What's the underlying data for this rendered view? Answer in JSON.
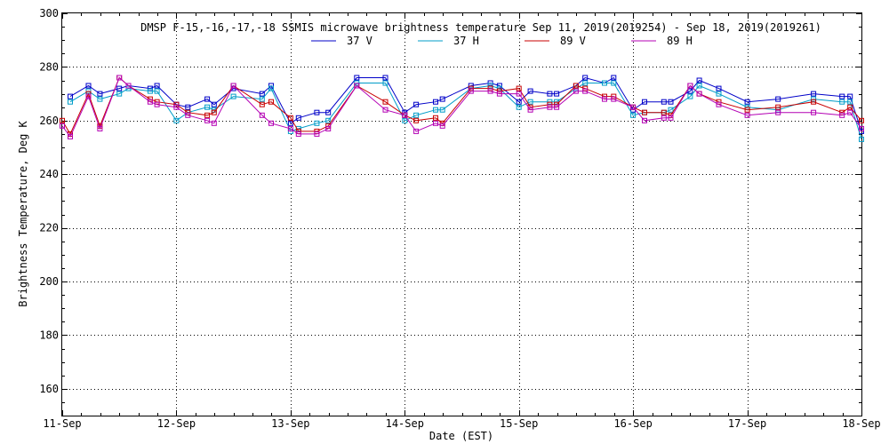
{
  "chart_data": {
    "type": "line",
    "title": "DMSP F-15,-16,-17,-18 SSMIS microwave brightness temperature Sep 11, 2019(2019254) - Sep 18, 2019(2019261)",
    "xlabel": "Date (EST)",
    "ylabel": "Brightness Temperature, Deg K",
    "xlim": [
      0,
      7
    ],
    "ylim": [
      150,
      300
    ],
    "x_tick_values": [
      0,
      1,
      2,
      3,
      4,
      5,
      6,
      7
    ],
    "x_tick_labels": [
      "11-Sep",
      "12-Sep",
      "13-Sep",
      "14-Sep",
      "15-Sep",
      "16-Sep",
      "17-Sep",
      "18-Sep"
    ],
    "y_tick_labels": [
      "160",
      "180",
      "200",
      "220",
      "240",
      "260",
      "280",
      "300"
    ],
    "y_tick_values": [
      160,
      180,
      200,
      220,
      240,
      260,
      280,
      300
    ],
    "grid": true,
    "legend_position": "top-center",
    "series": [
      {
        "name": "37 V",
        "color": "#0000c8",
        "points": [
          [
            0.07,
            269
          ],
          [
            0.23,
            273
          ],
          [
            0.33,
            270
          ],
          [
            0.5,
            272
          ],
          [
            0.58,
            273
          ],
          [
            0.77,
            272
          ],
          [
            0.83,
            273
          ],
          [
            1.0,
            266
          ],
          [
            1.1,
            265
          ],
          [
            1.27,
            268
          ],
          [
            1.33,
            266
          ],
          [
            1.5,
            272
          ],
          [
            1.75,
            270
          ],
          [
            1.83,
            273
          ],
          [
            2.0,
            259
          ],
          [
            2.07,
            261
          ],
          [
            2.23,
            263
          ],
          [
            2.33,
            263
          ],
          [
            2.58,
            276
          ],
          [
            2.83,
            276
          ],
          [
            3.0,
            263
          ],
          [
            3.1,
            266
          ],
          [
            3.27,
            267
          ],
          [
            3.33,
            268
          ],
          [
            3.58,
            273
          ],
          [
            3.75,
            274
          ],
          [
            3.83,
            273
          ],
          [
            4.0,
            267
          ],
          [
            4.1,
            271
          ],
          [
            4.27,
            270
          ],
          [
            4.33,
            270
          ],
          [
            4.5,
            273
          ],
          [
            4.58,
            276
          ],
          [
            4.75,
            274
          ],
          [
            4.83,
            276
          ],
          [
            5.0,
            264
          ],
          [
            5.1,
            267
          ],
          [
            5.27,
            267
          ],
          [
            5.33,
            267
          ],
          [
            5.5,
            271
          ],
          [
            5.58,
            275
          ],
          [
            5.75,
            272
          ],
          [
            6.0,
            267
          ],
          [
            6.27,
            268
          ],
          [
            6.58,
            270
          ],
          [
            6.83,
            269
          ],
          [
            6.9,
            269
          ],
          [
            7.0,
            256
          ]
        ]
      },
      {
        "name": "37 H",
        "color": "#009cc8",
        "points": [
          [
            0.07,
            267
          ],
          [
            0.23,
            271
          ],
          [
            0.33,
            268
          ],
          [
            0.5,
            270
          ],
          [
            0.58,
            272
          ],
          [
            0.77,
            271
          ],
          [
            0.83,
            271
          ],
          [
            1.0,
            260
          ],
          [
            1.1,
            263
          ],
          [
            1.27,
            265
          ],
          [
            1.33,
            264
          ],
          [
            1.5,
            269
          ],
          [
            1.75,
            268
          ],
          [
            1.83,
            272
          ],
          [
            2.0,
            256
          ],
          [
            2.07,
            257
          ],
          [
            2.23,
            259
          ],
          [
            2.33,
            260
          ],
          [
            2.58,
            274
          ],
          [
            2.83,
            274
          ],
          [
            3.0,
            260
          ],
          [
            3.1,
            262
          ],
          [
            3.27,
            264
          ],
          [
            3.33,
            264
          ],
          [
            3.58,
            272
          ],
          [
            3.75,
            273
          ],
          [
            3.83,
            272
          ],
          [
            4.0,
            265
          ],
          [
            4.1,
            267
          ],
          [
            4.27,
            267
          ],
          [
            4.33,
            267
          ],
          [
            4.5,
            272
          ],
          [
            4.58,
            274
          ],
          [
            4.75,
            274
          ],
          [
            4.83,
            274
          ],
          [
            5.0,
            262
          ],
          [
            5.1,
            263
          ],
          [
            5.27,
            263
          ],
          [
            5.33,
            264
          ],
          [
            5.5,
            269
          ],
          [
            5.58,
            273
          ],
          [
            5.75,
            270
          ],
          [
            6.0,
            265
          ],
          [
            6.27,
            264
          ],
          [
            6.58,
            268
          ],
          [
            6.83,
            267
          ],
          [
            6.9,
            267
          ],
          [
            7.0,
            253
          ]
        ]
      },
      {
        "name": "89 V",
        "color": "#c80000",
        "points": [
          [
            0.0,
            260
          ],
          [
            0.07,
            255
          ],
          [
            0.23,
            270
          ],
          [
            0.33,
            258
          ],
          [
            0.5,
            276
          ],
          [
            0.58,
            273
          ],
          [
            0.77,
            268
          ],
          [
            0.83,
            267
          ],
          [
            1.0,
            266
          ],
          [
            1.1,
            263
          ],
          [
            1.27,
            262
          ],
          [
            1.33,
            263
          ],
          [
            1.5,
            273
          ],
          [
            1.75,
            266
          ],
          [
            1.83,
            267
          ],
          [
            2.0,
            261
          ],
          [
            2.07,
            256
          ],
          [
            2.23,
            256
          ],
          [
            2.33,
            258
          ],
          [
            2.58,
            273
          ],
          [
            2.83,
            267
          ],
          [
            3.0,
            262
          ],
          [
            3.1,
            260
          ],
          [
            3.27,
            261
          ],
          [
            3.33,
            259
          ],
          [
            3.58,
            272
          ],
          [
            3.75,
            272
          ],
          [
            3.83,
            271
          ],
          [
            4.0,
            272
          ],
          [
            4.1,
            265
          ],
          [
            4.27,
            266
          ],
          [
            4.33,
            266
          ],
          [
            4.5,
            273
          ],
          [
            4.58,
            272
          ],
          [
            4.75,
            269
          ],
          [
            4.83,
            269
          ],
          [
            5.0,
            265
          ],
          [
            5.1,
            263
          ],
          [
            5.27,
            263
          ],
          [
            5.33,
            262
          ],
          [
            5.5,
            273
          ],
          [
            5.58,
            270
          ],
          [
            5.75,
            267
          ],
          [
            6.0,
            264
          ],
          [
            6.27,
            265
          ],
          [
            6.58,
            267
          ],
          [
            6.83,
            263
          ],
          [
            6.9,
            265
          ],
          [
            7.0,
            260
          ]
        ]
      },
      {
        "name": "89 H",
        "color": "#b400b4",
        "points": [
          [
            0.0,
            258
          ],
          [
            0.07,
            254
          ],
          [
            0.23,
            269
          ],
          [
            0.33,
            257
          ],
          [
            0.5,
            276
          ],
          [
            0.58,
            273
          ],
          [
            0.77,
            267
          ],
          [
            0.83,
            266
          ],
          [
            1.0,
            265
          ],
          [
            1.1,
            262
          ],
          [
            1.27,
            260
          ],
          [
            1.33,
            259
          ],
          [
            1.5,
            273
          ],
          [
            1.75,
            262
          ],
          [
            1.83,
            259
          ],
          [
            2.0,
            257
          ],
          [
            2.07,
            255
          ],
          [
            2.23,
            255
          ],
          [
            2.33,
            257
          ],
          [
            2.58,
            273
          ],
          [
            2.83,
            264
          ],
          [
            3.0,
            262
          ],
          [
            3.1,
            256
          ],
          [
            3.27,
            259
          ],
          [
            3.33,
            258
          ],
          [
            3.58,
            271
          ],
          [
            3.75,
            271
          ],
          [
            3.83,
            270
          ],
          [
            4.0,
            270
          ],
          [
            4.1,
            264
          ],
          [
            4.27,
            265
          ],
          [
            4.33,
            265
          ],
          [
            4.5,
            271
          ],
          [
            4.58,
            271
          ],
          [
            4.75,
            268
          ],
          [
            4.83,
            268
          ],
          [
            5.0,
            265
          ],
          [
            5.1,
            260
          ],
          [
            5.27,
            261
          ],
          [
            5.33,
            261
          ],
          [
            5.5,
            273
          ],
          [
            5.58,
            270
          ],
          [
            5.75,
            266
          ],
          [
            6.0,
            262
          ],
          [
            6.27,
            263
          ],
          [
            6.58,
            263
          ],
          [
            6.83,
            262
          ],
          [
            6.9,
            263
          ],
          [
            7.0,
            257
          ]
        ]
      }
    ]
  }
}
